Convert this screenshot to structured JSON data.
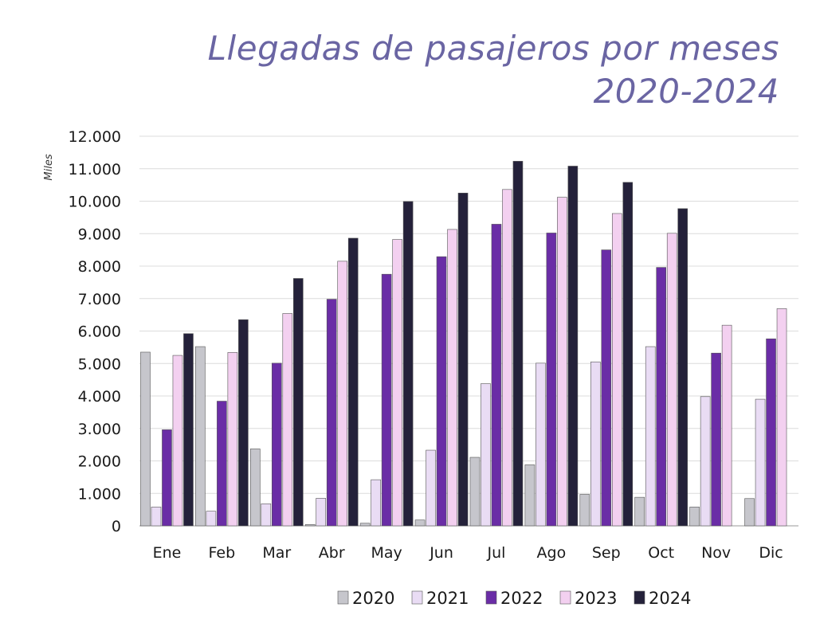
{
  "chart_data": {
    "type": "bar",
    "title_line1": "Llegadas de pasajeros por meses",
    "title_line2": "2020-2024",
    "ylabel": "Miles",
    "ylim": [
      0,
      12000
    ],
    "ytick_step": 1000,
    "ytick_labels": [
      "0",
      "1.000",
      "2.000",
      "3.000",
      "4.000",
      "5.000",
      "6.000",
      "7.000",
      "8.000",
      "9.000",
      "10.000",
      "11.000",
      "12.000"
    ],
    "grid": true,
    "legend_position": "bottom",
    "categories": [
      "Ene",
      "Feb",
      "Mar",
      "Abr",
      "May",
      "Jun",
      "Jul",
      "Ago",
      "Sep",
      "Oct",
      "Nov",
      "Dic"
    ],
    "series": [
      {
        "name": "2020",
        "color": "#c6c6cc",
        "values": [
          5350,
          5520,
          2370,
          40,
          80,
          180,
          2110,
          1880,
          970,
          880,
          580,
          840
        ]
      },
      {
        "name": "2021",
        "color": "#e9dcf4",
        "values": [
          580,
          450,
          680,
          850,
          1420,
          2330,
          4380,
          5010,
          5050,
          5520,
          3980,
          3900
        ]
      },
      {
        "name": "2022",
        "color": "#6a2da6",
        "values": [
          2960,
          3840,
          5010,
          6980,
          7750,
          8290,
          9290,
          9020,
          8500,
          7960,
          5320,
          5760
        ]
      },
      {
        "name": "2023",
        "color": "#f3d0f0",
        "values": [
          5250,
          5340,
          6540,
          8150,
          8820,
          9130,
          10360,
          10120,
          9620,
          9010,
          6180,
          6690
        ]
      },
      {
        "name": "2024",
        "color": "#24213a",
        "values": [
          5920,
          6350,
          7620,
          8860,
          9990,
          10250,
          11230,
          11080,
          10580,
          9770,
          null,
          null
        ]
      }
    ]
  }
}
